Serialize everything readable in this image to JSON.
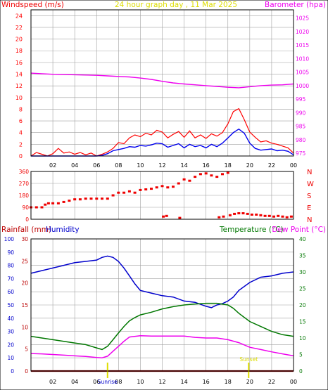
{
  "colors": {
    "wind_gust": "#ff0000",
    "wind_avg": "#0000ee",
    "barometer": "#ee00ee",
    "direction": "#ee0000",
    "humidity": "#0000cc",
    "temperature": "#007700",
    "dew_point": "#ee00ee",
    "rainfall": "#880000",
    "sun_marker": "#dddd00",
    "grid": "#a0a0a0",
    "frame": "#000000"
  },
  "chart_data": [
    {
      "type": "line",
      "title": "24 hour graph day , 11 Mar 2025",
      "ylabel": "Windspeed (m/s)",
      "y2label": "Barometer (hpa)",
      "x_ticks": [
        "02",
        "04",
        "06",
        "08",
        "10",
        "12",
        "14",
        "16",
        "18",
        "20",
        "22",
        "00"
      ],
      "y_ticks": [
        "0",
        "2",
        "4",
        "6",
        "8",
        "10",
        "12",
        "14",
        "16",
        "18",
        "20",
        "22",
        "24"
      ],
      "y2_ticks": [
        "975",
        "980",
        "985",
        "990",
        "995",
        "1000",
        "1005",
        "1010",
        "1015",
        "1020",
        "1025"
      ],
      "xlim": [
        0,
        24
      ],
      "ylim": [
        0,
        25
      ],
      "y2lim": [
        974,
        1028
      ],
      "grid": true,
      "series": [
        {
          "key": "barometer",
          "axis": "right",
          "x": [
            0,
            1,
            2,
            3,
            4,
            5,
            6,
            7,
            8,
            9,
            10,
            11,
            12,
            13,
            14,
            15,
            16,
            17,
            18,
            19,
            20,
            21,
            22,
            23,
            24
          ],
          "values": [
            1004.6,
            1004.4,
            1004.2,
            1004.1,
            1004.0,
            1003.9,
            1003.8,
            1003.6,
            1003.4,
            1003.2,
            1002.8,
            1002.3,
            1001.6,
            1001.0,
            1000.6,
            1000.3,
            1000.0,
            999.7,
            999.4,
            999.2,
            999.6,
            1000.0,
            1000.2,
            1000.3,
            1000.6
          ]
        },
        {
          "key": "wind_gust",
          "axis": "left",
          "x": [
            0,
            0.5,
            1,
            1.5,
            2,
            2.5,
            3,
            3.5,
            4,
            4.5,
            5,
            5.5,
            6,
            6.5,
            7,
            7.5,
            8,
            8.5,
            9,
            9.5,
            10,
            10.5,
            11,
            11.5,
            12,
            12.5,
            13,
            13.5,
            14,
            14.5,
            15,
            15.5,
            16,
            16.5,
            17,
            17.5,
            18,
            18.5,
            19,
            19.5,
            20,
            20.5,
            21,
            21.5,
            22,
            22.5,
            23,
            23.5,
            24
          ],
          "values": [
            0,
            0.6,
            0.3,
            0,
            0.4,
            1.3,
            0.5,
            0.7,
            0.3,
            0.6,
            0.2,
            0.5,
            0,
            0.3,
            0.7,
            1.3,
            2.3,
            2.1,
            3.1,
            3.6,
            3.3,
            3.9,
            3.6,
            4.4,
            4.1,
            3.1,
            3.7,
            4.2,
            3.2,
            4.3,
            3.1,
            3.6,
            3.0,
            3.8,
            3.4,
            4.0,
            5.5,
            7.6,
            8.1,
            6.2,
            4.1,
            3.2,
            2.4,
            2.6,
            2.2,
            2.0,
            1.7,
            1.4,
            0.5
          ]
        },
        {
          "key": "wind_avg",
          "axis": "left",
          "x": [
            0,
            1,
            2,
            3,
            4,
            5,
            6,
            6.5,
            7,
            7.5,
            8,
            8.5,
            9,
            9.5,
            10,
            10.5,
            11,
            11.5,
            12,
            12.5,
            13,
            13.5,
            14,
            14.5,
            15,
            15.5,
            16,
            16.5,
            17,
            17.5,
            18,
            18.5,
            19,
            19.5,
            20,
            20.5,
            21,
            21.5,
            22,
            22.5,
            23,
            23.5,
            24
          ],
          "values": [
            0,
            0,
            0,
            0,
            0,
            0,
            0,
            0.1,
            0.4,
            0.9,
            1.1,
            1.3,
            1.6,
            1.5,
            1.8,
            1.7,
            1.9,
            2.2,
            2.1,
            1.5,
            1.8,
            2.1,
            1.4,
            2.0,
            1.6,
            1.8,
            1.4,
            2.0,
            1.6,
            2.2,
            3.1,
            4.0,
            4.6,
            3.9,
            2.2,
            1.3,
            1.0,
            1.1,
            1.2,
            0.9,
            1.0,
            0.8,
            0.2
          ]
        }
      ]
    },
    {
      "type": "scatter",
      "title": "",
      "ylabel": "",
      "x_ticks": [
        "02",
        "04",
        "06",
        "08",
        "10",
        "12",
        "14",
        "16",
        "18",
        "20",
        "22",
        "00"
      ],
      "y_ticks": [
        "0",
        "90",
        "180",
        "270",
        "360"
      ],
      "compass_labels": [
        "N",
        "W",
        "S",
        "E",
        "N"
      ],
      "xlim": [
        0,
        24
      ],
      "ylim": [
        0,
        360
      ],
      "grid": true,
      "series": [
        {
          "key": "direction",
          "x": [
            0,
            0.5,
            1,
            1.3,
            1.6,
            2,
            2.5,
            3,
            3.5,
            4,
            4.5,
            5,
            5.5,
            6,
            6.5,
            7,
            7.5,
            8,
            8.5,
            9,
            9.5,
            10,
            10.5,
            11,
            11.5,
            12,
            12.5,
            13,
            13.5,
            14,
            14.5,
            15,
            15.5,
            16,
            16.5,
            17,
            17.5,
            18,
            12.1,
            12.4,
            13.6,
            17.2,
            17.6,
            18.2,
            18.6,
            19,
            19.4,
            19.8,
            20.2,
            20.6,
            21,
            21.4,
            21.8,
            22.2,
            22.6,
            23,
            23.4,
            23.8
          ],
          "values": [
            90,
            90,
            90,
            110,
            120,
            120,
            120,
            130,
            140,
            150,
            150,
            155,
            155,
            155,
            155,
            155,
            180,
            200,
            200,
            210,
            200,
            220,
            225,
            230,
            240,
            250,
            240,
            245,
            270,
            300,
            290,
            320,
            340,
            345,
            330,
            320,
            340,
            350,
            20,
            25,
            10,
            15,
            20,
            30,
            40,
            45,
            45,
            40,
            35,
            35,
            30,
            25,
            25,
            20,
            25,
            20,
            15,
            20
          ]
        }
      ]
    },
    {
      "type": "line",
      "title": "",
      "labels": [
        "Rainfall (mm)",
        "Humidity",
        "Temperature (°C)",
        "Dew Point (°C)"
      ],
      "x_ticks": [
        "02",
        "04",
        "06",
        "08",
        "10",
        "12",
        "14",
        "16",
        "18",
        "20",
        "22",
        "00"
      ],
      "humidity_ticks": [
        "0",
        "10",
        "20",
        "30",
        "40",
        "50",
        "60",
        "70",
        "80",
        "90",
        "100"
      ],
      "rain_ticks": [
        "0",
        "5",
        "10",
        "15",
        "20",
        "25",
        "30"
      ],
      "temp_ticks": [
        "0",
        "5",
        "10",
        "15",
        "20",
        "25",
        "30",
        "35",
        "40"
      ],
      "xlim": [
        0,
        24
      ],
      "humidity_lim": [
        0,
        100
      ],
      "rain_lim": [
        0,
        30
      ],
      "temp_lim": [
        0,
        40
      ],
      "grid": true,
      "annotations": [
        {
          "label": "Sunrise",
          "x": 7.0
        },
        {
          "label": "Sunset",
          "x": 19.9
        }
      ],
      "series": [
        {
          "key": "humidity",
          "axis": "humidity",
          "x": [
            0,
            1,
            2,
            3,
            4,
            5,
            6,
            6.5,
            7,
            7.5,
            8,
            8.5,
            9,
            9.5,
            10,
            11,
            12,
            13,
            14,
            15,
            16,
            16.5,
            17,
            17.5,
            18,
            18.5,
            19,
            20,
            21,
            22,
            23,
            24
          ],
          "values": [
            74,
            76,
            78,
            80,
            82,
            83,
            84,
            86,
            87,
            86,
            83,
            78,
            72,
            66,
            61,
            59,
            57,
            56,
            53,
            52,
            49,
            48,
            50,
            51,
            53,
            56,
            61,
            67,
            71,
            72,
            74,
            75
          ]
        },
        {
          "key": "temperature",
          "axis": "temp",
          "x": [
            0,
            1,
            2,
            3,
            4,
            5,
            6,
            6.5,
            7,
            7.5,
            8,
            8.5,
            9,
            9.5,
            10,
            11,
            12,
            13,
            14,
            15,
            16,
            17,
            18,
            18.5,
            19,
            20,
            21,
            22,
            23,
            24
          ],
          "values": [
            10.5,
            10,
            9.5,
            9,
            8.5,
            8,
            7,
            6.5,
            7.5,
            9.5,
            11.5,
            13.5,
            15.2,
            16.2,
            17,
            17.8,
            18.8,
            19.5,
            20,
            20.3,
            20.5,
            20.5,
            20,
            19,
            17.5,
            15,
            13.5,
            12,
            11,
            10.5
          ]
        },
        {
          "key": "dew_point",
          "axis": "temp",
          "x": [
            0,
            1,
            2,
            3,
            4,
            5,
            6,
            6.5,
            7,
            7.5,
            8,
            8.5,
            9,
            10,
            11,
            12,
            13,
            14,
            15,
            16,
            17,
            18,
            19,
            20,
            21,
            22,
            23,
            24
          ],
          "values": [
            5.3,
            5.2,
            5,
            4.8,
            4.6,
            4.4,
            4.1,
            4,
            4.5,
            6,
            7.5,
            9,
            10.3,
            10.7,
            10.6,
            10.6,
            10.6,
            10.6,
            10.2,
            10,
            10,
            9.5,
            8.6,
            7.2,
            6.5,
            5.8,
            5.2,
            4.6
          ]
        },
        {
          "key": "rainfall",
          "axis": "rain",
          "x": [
            0,
            24
          ],
          "values": [
            0,
            0
          ]
        }
      ]
    }
  ]
}
